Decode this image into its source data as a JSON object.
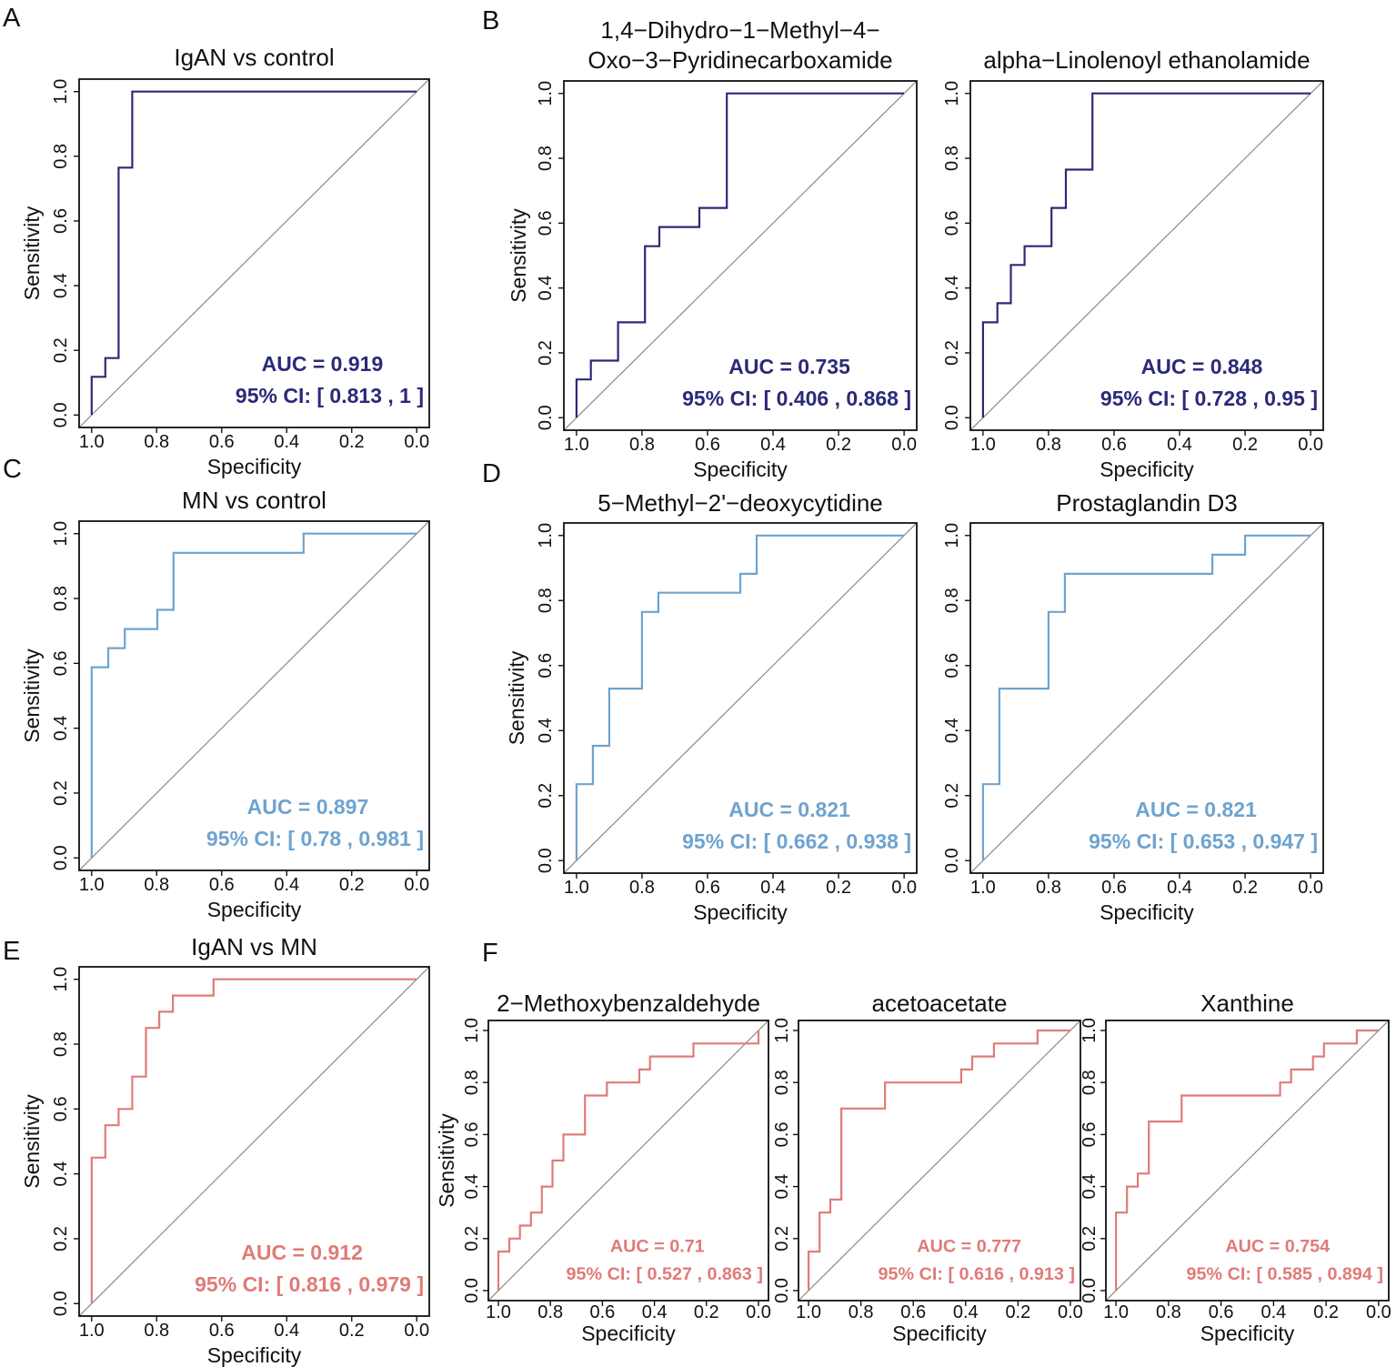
{
  "panel_letters": [
    "A",
    "B",
    "C",
    "D",
    "E",
    "F"
  ],
  "chart_data": [
    {
      "id": "A",
      "type": "line",
      "title": [
        "IgAN vs control"
      ],
      "xlabel": "Specificity",
      "ylabel": "Sensitivity",
      "xlim": [
        1,
        0
      ],
      "ylim": [
        0,
        1
      ],
      "xticks": [
        "1.0",
        "0.8",
        "0.6",
        "0.4",
        "0.2",
        "0.0"
      ],
      "yticks": [
        "0.0",
        "0.2",
        "0.4",
        "0.6",
        "0.8",
        "1.0"
      ],
      "color": "#2b2a78",
      "reference_line": true,
      "auc_text": "AUC =  0.919",
      "ci_text": "95% CI: [ 0.813 ,  1 ]",
      "points": [
        [
          1,
          0
        ],
        [
          1,
          0.118
        ],
        [
          0.958,
          0.118
        ],
        [
          0.958,
          0.176
        ],
        [
          0.917,
          0.176
        ],
        [
          0.917,
          0.765
        ],
        [
          0.875,
          0.765
        ],
        [
          0.875,
          1
        ],
        [
          0,
          1
        ]
      ]
    },
    {
      "id": "B1",
      "type": "line",
      "title": [
        "1,4−Dihydro−1−Methyl−4−",
        "Oxo−3−Pyridinecarboxamide"
      ],
      "xlabel": "Specificity",
      "ylabel": "Sensitivity",
      "xlim": [
        1,
        0
      ],
      "ylim": [
        0,
        1
      ],
      "xticks": [
        "1.0",
        "0.8",
        "0.6",
        "0.4",
        "0.2",
        "0.0"
      ],
      "yticks": [
        "0.0",
        "0.2",
        "0.4",
        "0.6",
        "0.8",
        "1.0"
      ],
      "color": "#2b2a78",
      "reference_line": true,
      "auc_text": "AUC =  0.735",
      "ci_text": "95% CI: [ 0.406 ,  0.868 ]",
      "points": [
        [
          1,
          0
        ],
        [
          1,
          0.118
        ],
        [
          0.956,
          0.118
        ],
        [
          0.956,
          0.176
        ],
        [
          0.873,
          0.176
        ],
        [
          0.873,
          0.294
        ],
        [
          0.791,
          0.294
        ],
        [
          0.791,
          0.529
        ],
        [
          0.747,
          0.529
        ],
        [
          0.747,
          0.588
        ],
        [
          0.625,
          0.588
        ],
        [
          0.625,
          0.647
        ],
        [
          0.541,
          0.647
        ],
        [
          0.541,
          1
        ],
        [
          0,
          1
        ]
      ]
    },
    {
      "id": "B2",
      "type": "line",
      "title": [
        "alpha−Linolenoyl ethanolamide"
      ],
      "xlabel": "Specificity",
      "ylabel": "",
      "xlim": [
        1,
        0
      ],
      "ylim": [
        0,
        1
      ],
      "xticks": [
        "1.0",
        "0.8",
        "0.6",
        "0.4",
        "0.2",
        "0.0"
      ],
      "yticks": [
        "0.0",
        "0.2",
        "0.4",
        "0.6",
        "0.8",
        "1.0"
      ],
      "color": "#2b2a78",
      "reference_line": true,
      "auc_text": "AUC =  0.848",
      "ci_text": "95% CI: [ 0.728 ,  0.95 ]",
      "points": [
        [
          1,
          0
        ],
        [
          1,
          0.294
        ],
        [
          0.956,
          0.294
        ],
        [
          0.956,
          0.353
        ],
        [
          0.915,
          0.353
        ],
        [
          0.915,
          0.471
        ],
        [
          0.873,
          0.471
        ],
        [
          0.873,
          0.529
        ],
        [
          0.791,
          0.529
        ],
        [
          0.791,
          0.647
        ],
        [
          0.747,
          0.647
        ],
        [
          0.747,
          0.765
        ],
        [
          0.666,
          0.765
        ],
        [
          0.666,
          1
        ],
        [
          0,
          1
        ]
      ]
    },
    {
      "id": "C",
      "type": "line",
      "title": [
        "MN vs control"
      ],
      "xlabel": "Specificity",
      "ylabel": "Sensitivity",
      "xlim": [
        1,
        0
      ],
      "ylim": [
        0,
        1
      ],
      "xticks": [
        "1.0",
        "0.8",
        "0.6",
        "0.4",
        "0.2",
        "0.0"
      ],
      "yticks": [
        "0.0",
        "0.2",
        "0.4",
        "0.6",
        "0.8",
        "1.0"
      ],
      "color": "#6fa3cf",
      "reference_line": true,
      "auc_text": "AUC =  0.897",
      "ci_text": "95% CI: [ 0.78 ,  0.981 ]",
      "points": [
        [
          1,
          0
        ],
        [
          1,
          0.588
        ],
        [
          0.949,
          0.588
        ],
        [
          0.949,
          0.647
        ],
        [
          0.898,
          0.647
        ],
        [
          0.898,
          0.706
        ],
        [
          0.798,
          0.706
        ],
        [
          0.798,
          0.765
        ],
        [
          0.748,
          0.765
        ],
        [
          0.748,
          0.941
        ],
        [
          0.348,
          0.941
        ],
        [
          0.348,
          1
        ],
        [
          0,
          1
        ]
      ]
    },
    {
      "id": "D1",
      "type": "line",
      "title": [
        "5−Methyl−2'−deoxycytidine"
      ],
      "xlabel": "Specificity",
      "ylabel": "Sensitivity",
      "xlim": [
        1,
        0
      ],
      "ylim": [
        0,
        1
      ],
      "xticks": [
        "1.0",
        "0.8",
        "0.6",
        "0.4",
        "0.2",
        "0.0"
      ],
      "yticks": [
        "0.0",
        "0.2",
        "0.4",
        "0.6",
        "0.8",
        "1.0"
      ],
      "color": "#6fa3cf",
      "reference_line": true,
      "auc_text": "AUC =  0.821",
      "ci_text": "95% CI: [ 0.662 ,  0.938 ]",
      "points": [
        [
          1,
          0
        ],
        [
          1,
          0.235
        ],
        [
          0.95,
          0.235
        ],
        [
          0.95,
          0.353
        ],
        [
          0.9,
          0.353
        ],
        [
          0.9,
          0.529
        ],
        [
          0.8,
          0.529
        ],
        [
          0.8,
          0.765
        ],
        [
          0.75,
          0.765
        ],
        [
          0.75,
          0.824
        ],
        [
          0.5,
          0.824
        ],
        [
          0.5,
          0.882
        ],
        [
          0.45,
          0.882
        ],
        [
          0.45,
          1
        ],
        [
          0,
          1
        ]
      ]
    },
    {
      "id": "D2",
      "type": "line",
      "title": [
        "Prostaglandin D3"
      ],
      "xlabel": "Specificity",
      "ylabel": "",
      "xlim": [
        1,
        0
      ],
      "ylim": [
        0,
        1
      ],
      "xticks": [
        "1.0",
        "0.8",
        "0.6",
        "0.4",
        "0.2",
        "0.0"
      ],
      "yticks": [
        "0.0",
        "0.2",
        "0.4",
        "0.6",
        "0.8",
        "1.0"
      ],
      "color": "#6fa3cf",
      "reference_line": true,
      "auc_text": "AUC =  0.821",
      "ci_text": "95% CI: [ 0.653 ,  0.947 ]",
      "points": [
        [
          1,
          0
        ],
        [
          1,
          0.235
        ],
        [
          0.95,
          0.235
        ],
        [
          0.95,
          0.529
        ],
        [
          0.8,
          0.529
        ],
        [
          0.8,
          0.765
        ],
        [
          0.75,
          0.765
        ],
        [
          0.75,
          0.882
        ],
        [
          0.3,
          0.882
        ],
        [
          0.3,
          0.941
        ],
        [
          0.2,
          0.941
        ],
        [
          0.2,
          1
        ],
        [
          0,
          1
        ]
      ]
    },
    {
      "id": "E",
      "type": "line",
      "title": [
        "IgAN vs MN"
      ],
      "xlabel": "Specificity",
      "ylabel": "Sensitivity",
      "xlim": [
        1,
        0
      ],
      "ylim": [
        0,
        1
      ],
      "xticks": [
        "1.0",
        "0.8",
        "0.6",
        "0.4",
        "0.2",
        "0.0"
      ],
      "yticks": [
        "0.0",
        "0.2",
        "0.4",
        "0.6",
        "0.8",
        "1.0"
      ],
      "color": "#e07b78",
      "reference_line": true,
      "auc_text": "AUC =  0.912",
      "ci_text": "95% CI: [ 0.816 ,  0.979 ]",
      "points": [
        [
          1,
          0
        ],
        [
          1,
          0.45
        ],
        [
          0.958,
          0.45
        ],
        [
          0.958,
          0.55
        ],
        [
          0.917,
          0.55
        ],
        [
          0.917,
          0.6
        ],
        [
          0.875,
          0.6
        ],
        [
          0.875,
          0.7
        ],
        [
          0.833,
          0.7
        ],
        [
          0.833,
          0.85
        ],
        [
          0.792,
          0.85
        ],
        [
          0.792,
          0.9
        ],
        [
          0.75,
          0.9
        ],
        [
          0.75,
          0.95
        ],
        [
          0.625,
          0.95
        ],
        [
          0.625,
          1
        ],
        [
          0,
          1
        ]
      ]
    },
    {
      "id": "F1",
      "type": "line",
      "title": [
        "2−Methoxybenzaldehyde"
      ],
      "xlabel": "Specificity",
      "ylabel": "Sensitivity",
      "xlim": [
        1,
        0
      ],
      "ylim": [
        0,
        1
      ],
      "xticks": [
        "1.0",
        "0.8",
        "0.6",
        "0.4",
        "0.2",
        "0.0"
      ],
      "yticks": [
        "0.0",
        "0.2",
        "0.4",
        "0.6",
        "0.8",
        "1.0"
      ],
      "color": "#e07b78",
      "reference_line": true,
      "auc_text": "AUC =  0.71",
      "ci_text": "95% CI: [ 0.527 ,  0.863 ]",
      "points": [
        [
          1,
          0
        ],
        [
          1,
          0.15
        ],
        [
          0.958,
          0.15
        ],
        [
          0.958,
          0.2
        ],
        [
          0.917,
          0.2
        ],
        [
          0.917,
          0.25
        ],
        [
          0.875,
          0.25
        ],
        [
          0.875,
          0.3
        ],
        [
          0.833,
          0.3
        ],
        [
          0.833,
          0.4
        ],
        [
          0.792,
          0.4
        ],
        [
          0.792,
          0.5
        ],
        [
          0.75,
          0.5
        ],
        [
          0.75,
          0.6
        ],
        [
          0.667,
          0.6
        ],
        [
          0.667,
          0.75
        ],
        [
          0.583,
          0.75
        ],
        [
          0.583,
          0.8
        ],
        [
          0.458,
          0.8
        ],
        [
          0.458,
          0.85
        ],
        [
          0.417,
          0.85
        ],
        [
          0.417,
          0.9
        ],
        [
          0.25,
          0.9
        ],
        [
          0.25,
          0.95
        ],
        [
          0,
          0.95
        ],
        [
          0,
          1
        ]
      ]
    },
    {
      "id": "F2",
      "type": "line",
      "title": [
        "acetoacetate"
      ],
      "xlabel": "Specificity",
      "ylabel": "",
      "xlim": [
        1,
        0
      ],
      "ylim": [
        0,
        1
      ],
      "xticks": [
        "1.0",
        "0.8",
        "0.6",
        "0.4",
        "0.2",
        "0.0"
      ],
      "yticks": [
        "0.0",
        "0.2",
        "0.4",
        "0.6",
        "0.8",
        "1.0"
      ],
      "color": "#e07b78",
      "reference_line": true,
      "auc_text": "AUC =  0.777",
      "ci_text": "95% CI: [ 0.616 ,  0.913 ]",
      "points": [
        [
          1,
          0
        ],
        [
          1,
          0.15
        ],
        [
          0.958,
          0.15
        ],
        [
          0.958,
          0.3
        ],
        [
          0.917,
          0.3
        ],
        [
          0.917,
          0.35
        ],
        [
          0.875,
          0.35
        ],
        [
          0.875,
          0.7
        ],
        [
          0.708,
          0.7
        ],
        [
          0.708,
          0.8
        ],
        [
          0.417,
          0.8
        ],
        [
          0.417,
          0.85
        ],
        [
          0.375,
          0.85
        ],
        [
          0.375,
          0.9
        ],
        [
          0.292,
          0.9
        ],
        [
          0.292,
          0.95
        ],
        [
          0.125,
          0.95
        ],
        [
          0.125,
          1
        ],
        [
          0,
          1
        ]
      ]
    },
    {
      "id": "F3",
      "type": "line",
      "title": [
        "Xanthine"
      ],
      "xlabel": "Specificity",
      "ylabel": "",
      "xlim": [
        1,
        0
      ],
      "ylim": [
        0,
        1
      ],
      "xticks": [
        "1.0",
        "0.8",
        "0.6",
        "0.4",
        "0.2",
        "0.0"
      ],
      "yticks": [
        "0.0",
        "0.2",
        "0.4",
        "0.6",
        "0.8",
        "1.0"
      ],
      "color": "#e07b78",
      "reference_line": true,
      "auc_text": "AUC =  0.754",
      "ci_text": "95% CI: [ 0.585 ,  0.894 ]",
      "points": [
        [
          1,
          0
        ],
        [
          1,
          0.3
        ],
        [
          0.958,
          0.3
        ],
        [
          0.958,
          0.4
        ],
        [
          0.917,
          0.4
        ],
        [
          0.917,
          0.45
        ],
        [
          0.875,
          0.45
        ],
        [
          0.875,
          0.65
        ],
        [
          0.75,
          0.65
        ],
        [
          0.75,
          0.75
        ],
        [
          0.375,
          0.75
        ],
        [
          0.375,
          0.8
        ],
        [
          0.333,
          0.8
        ],
        [
          0.333,
          0.85
        ],
        [
          0.25,
          0.85
        ],
        [
          0.25,
          0.9
        ],
        [
          0.208,
          0.9
        ],
        [
          0.208,
          0.95
        ],
        [
          0.083,
          0.95
        ],
        [
          0.083,
          1
        ],
        [
          0,
          1
        ]
      ]
    }
  ]
}
